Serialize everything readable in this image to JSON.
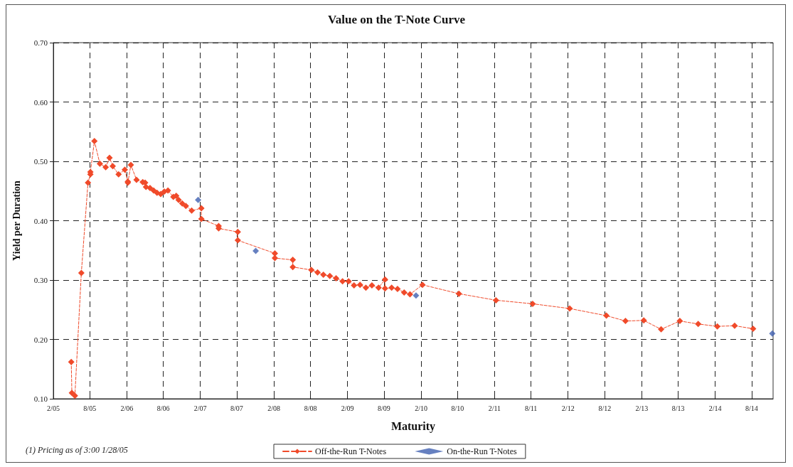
{
  "chart_data": {
    "type": "line",
    "title": "Value on the T-Note Curve",
    "xlabel": "Maturity",
    "ylabel": "Yield per Duration",
    "annotations": [
      "(1) Pricing as of 3:00 1/28/05"
    ],
    "xlim": [
      "2005-02-01",
      "2014-11-15"
    ],
    "xticks": [
      {
        "value": "2005-02",
        "label": "2/05"
      },
      {
        "value": "2005-08",
        "label": "8/05"
      },
      {
        "value": "2006-02",
        "label": "2/06"
      },
      {
        "value": "2006-08",
        "label": "8/06"
      },
      {
        "value": "2007-02",
        "label": "2/07"
      },
      {
        "value": "2007-08",
        "label": "8/07"
      },
      {
        "value": "2008-02",
        "label": "2/08"
      },
      {
        "value": "2008-08",
        "label": "8/08"
      },
      {
        "value": "2009-02",
        "label": "2/09"
      },
      {
        "value": "2009-08",
        "label": "8/09"
      },
      {
        "value": "2010-02",
        "label": "2/10"
      },
      {
        "value": "2010-08",
        "label": "8/10"
      },
      {
        "value": "2011-02",
        "label": "2/11"
      },
      {
        "value": "2011-08",
        "label": "8/11"
      },
      {
        "value": "2012-02",
        "label": "2/12"
      },
      {
        "value": "2012-08",
        "label": "8/12"
      },
      {
        "value": "2013-02",
        "label": "2/13"
      },
      {
        "value": "2013-08",
        "label": "8/13"
      },
      {
        "value": "2014-02",
        "label": "2/14"
      },
      {
        "value": "2014-08",
        "label": "8/14"
      }
    ],
    "ylim": [
      0.1,
      0.7
    ],
    "yticks": [
      {
        "value": 0.1,
        "label": "0.10"
      },
      {
        "value": 0.2,
        "label": "0.20"
      },
      {
        "value": 0.3,
        "label": "0.30"
      },
      {
        "value": 0.4,
        "label": "0.40"
      },
      {
        "value": 0.5,
        "label": "0.50"
      },
      {
        "value": 0.6,
        "label": "0.60"
      },
      {
        "value": 0.7,
        "label": "0.70"
      }
    ],
    "grid": true,
    "legend": "bottom",
    "marker": "diamond",
    "line_style": "dashed",
    "series": [
      {
        "name": "Off-the-Run T-Notes",
        "color": "#f04a2a",
        "x": [
          "2005-05-01",
          "2005-05-04",
          "2005-05-19",
          "2005-06-20",
          "2005-07-23",
          "2005-08-04",
          "2005-08-04",
          "2005-08-24",
          "2005-09-20",
          "2005-10-19",
          "2005-11-07",
          "2005-11-23",
          "2005-12-22",
          "2006-01-22",
          "2006-02-06",
          "2006-02-06",
          "2006-02-21",
          "2006-03-21",
          "2006-04-21",
          "2006-05-03",
          "2006-05-07",
          "2006-05-27",
          "2006-06-14",
          "2006-07-01",
          "2006-07-19",
          "2006-08-06",
          "2006-08-24",
          "2006-09-20",
          "2006-10-04",
          "2006-10-16",
          "2006-11-03",
          "2006-11-21",
          "2006-12-20",
          "2007-02-06",
          "2007-02-06",
          "2007-05-03",
          "2007-05-03",
          "2007-08-06",
          "2007-08-06",
          "2008-02-06",
          "2008-02-06",
          "2008-05-05",
          "2008-05-05",
          "2008-08-05",
          "2008-09-05",
          "2008-10-04",
          "2008-11-05",
          "2008-12-06",
          "2009-01-07",
          "2009-02-06",
          "2009-03-05",
          "2009-04-04",
          "2009-05-03",
          "2009-06-02",
          "2009-07-05",
          "2009-08-06",
          "2009-08-06",
          "2009-09-08",
          "2009-10-07",
          "2009-11-09",
          "2009-12-08",
          "2010-02-08",
          "2010-08-08",
          "2011-02-08",
          "2011-08-09",
          "2012-02-09",
          "2012-08-09",
          "2012-11-12",
          "2013-02-11",
          "2013-05-08",
          "2013-08-09",
          "2013-11-08",
          "2014-02-11",
          "2014-05-08",
          "2014-08-08"
        ],
        "values": [
          0.162,
          0.11,
          0.105,
          0.312,
          0.464,
          0.478,
          0.482,
          0.534,
          0.496,
          0.49,
          0.506,
          0.492,
          0.478,
          0.486,
          0.466,
          0.464,
          0.494,
          0.469,
          0.465,
          0.464,
          0.457,
          0.455,
          0.451,
          0.447,
          0.445,
          0.449,
          0.451,
          0.44,
          0.442,
          0.435,
          0.429,
          0.425,
          0.417,
          0.421,
          0.403,
          0.391,
          0.387,
          0.381,
          0.367,
          0.345,
          0.337,
          0.334,
          0.322,
          0.317,
          0.313,
          0.309,
          0.307,
          0.303,
          0.298,
          0.298,
          0.291,
          0.292,
          0.287,
          0.291,
          0.287,
          0.301,
          0.286,
          0.287,
          0.285,
          0.279,
          0.276,
          0.292,
          0.277,
          0.266,
          0.26,
          0.252,
          0.24,
          0.231,
          0.232,
          0.217,
          0.231,
          0.226,
          0.222,
          0.223,
          0.218
        ]
      },
      {
        "name": "On-the-Run T-Notes",
        "type": "scatter",
        "color": "#4060b0",
        "x": [
          "2007-01-21",
          "2007-11-03",
          "2010-01-07",
          "2014-11-11"
        ],
        "values": [
          0.435,
          0.349,
          0.274,
          0.21
        ]
      }
    ]
  }
}
